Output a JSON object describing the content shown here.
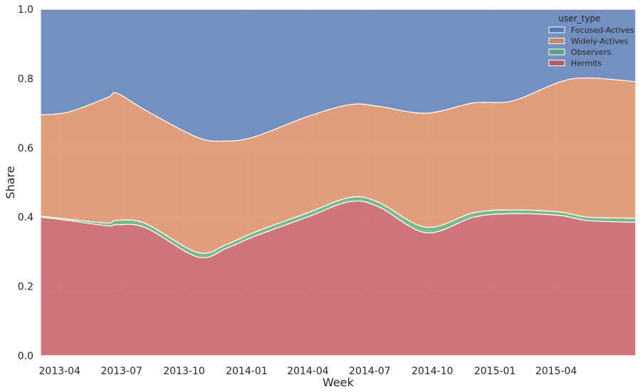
{
  "chart_data": {
    "type": "area",
    "stacked": true,
    "normalized": true,
    "xlabel": "Week",
    "ylabel": "Share",
    "ylim": [
      0,
      1
    ],
    "xlim": [
      "2013-03-04",
      "2015-07-27"
    ],
    "x_ticks": [
      "2013-04",
      "2013-07",
      "2013-10",
      "2014-01",
      "2014-04",
      "2014-07",
      "2014-10",
      "2015-01",
      "2015-04"
    ],
    "y_ticks": [
      "0.0",
      "0.2",
      "0.4",
      "0.6",
      "0.8",
      "1.0"
    ],
    "grid": true,
    "background": "#eaeaf2",
    "legend": {
      "title": "user_type",
      "placement": "top-right"
    },
    "x": [
      "2013-03-04",
      "2013-04-15",
      "2013-06-10",
      "2013-06-24",
      "2013-08-05",
      "2013-10-21",
      "2013-12-02",
      "2014-01-13",
      "2014-03-31",
      "2014-06-02",
      "2014-07-14",
      "2014-09-22",
      "2014-12-01",
      "2015-01-26",
      "2015-04-06",
      "2015-05-18",
      "2015-07-27"
    ],
    "series": [
      {
        "name": "Hermits",
        "color": "#c44e52",
        "values": [
          0.4,
          0.39,
          0.375,
          0.378,
          0.37,
          0.285,
          0.31,
          0.345,
          0.4,
          0.445,
          0.43,
          0.355,
          0.4,
          0.41,
          0.405,
          0.39,
          0.385
        ]
      },
      {
        "name": "Observers",
        "color": "#55a868",
        "values": [
          0.003,
          0.004,
          0.008,
          0.013,
          0.012,
          0.013,
          0.011,
          0.012,
          0.012,
          0.012,
          0.013,
          0.016,
          0.013,
          0.011,
          0.01,
          0.01,
          0.012
        ]
      },
      {
        "name": "Widely-Actives",
        "color": "#dd8452",
        "values": [
          0.292,
          0.31,
          0.362,
          0.367,
          0.327,
          0.332,
          0.299,
          0.275,
          0.278,
          0.268,
          0.277,
          0.329,
          0.317,
          0.314,
          0.375,
          0.402,
          0.394
        ]
      },
      {
        "name": "Focused-Actives",
        "color": "#4c72b0",
        "values": [
          0.305,
          0.296,
          0.255,
          0.242,
          0.291,
          0.37,
          0.38,
          0.368,
          0.31,
          0.275,
          0.28,
          0.3,
          0.27,
          0.265,
          0.21,
          0.198,
          0.209
        ]
      }
    ]
  }
}
